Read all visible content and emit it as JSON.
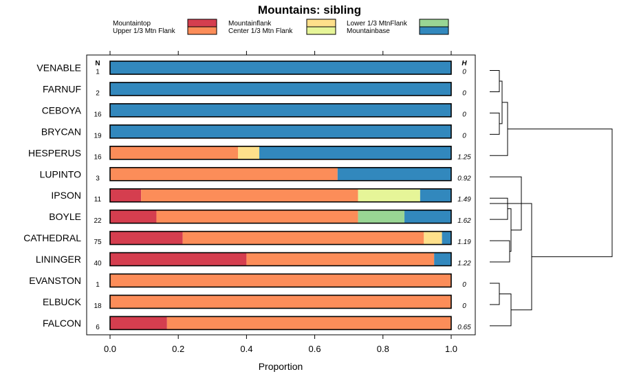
{
  "chart_data": {
    "type": "bar",
    "orientation": "horizontal",
    "stacked": true,
    "title": "Mountains: sibling",
    "xlabel": "Proportion",
    "xlim": [
      0,
      1
    ],
    "xticks": [
      "0.0",
      "0.2",
      "0.4",
      "0.6",
      "0.8",
      "1.0"
    ],
    "n_header": "N",
    "h_header": "H",
    "legend": [
      {
        "name": "Mountaintop",
        "color": "#d53e4f"
      },
      {
        "name": "Upper 1/3 Mtn Flank",
        "color": "#fc8d59"
      },
      {
        "name": "Mountainflank",
        "color": "#fee08b"
      },
      {
        "name": "Center 1/3 Mtn Flank",
        "color": "#e6f598"
      },
      {
        "name": "Lower 1/3 MtnFlank",
        "color": "#99d594"
      },
      {
        "name": "Mountainbase",
        "color": "#3288bd"
      }
    ],
    "rows": [
      {
        "label": "VENABLE",
        "n": "1",
        "h": "0",
        "segments": [
          {
            "cat": "Mountainbase",
            "value": 1.0
          }
        ]
      },
      {
        "label": "FARNUF",
        "n": "2",
        "h": "0",
        "segments": [
          {
            "cat": "Mountainbase",
            "value": 1.0
          }
        ]
      },
      {
        "label": "CEBOYA",
        "n": "16",
        "h": "0",
        "segments": [
          {
            "cat": "Mountainbase",
            "value": 1.0
          }
        ]
      },
      {
        "label": "BRYCAN",
        "n": "19",
        "h": "0",
        "segments": [
          {
            "cat": "Mountainbase",
            "value": 1.0
          }
        ]
      },
      {
        "label": "HESPERUS",
        "n": "16",
        "h": "1.25",
        "segments": [
          {
            "cat": "Upper 1/3 Mtn Flank",
            "value": 0.375
          },
          {
            "cat": "Mountainflank",
            "value": 0.0625
          },
          {
            "cat": "Mountainbase",
            "value": 0.5625
          }
        ]
      },
      {
        "label": "LUPINTO",
        "n": "3",
        "h": "0.92",
        "segments": [
          {
            "cat": "Upper 1/3 Mtn Flank",
            "value": 0.667
          },
          {
            "cat": "Mountainbase",
            "value": 0.333
          }
        ]
      },
      {
        "label": "IPSON",
        "n": "11",
        "h": "1.49",
        "segments": [
          {
            "cat": "Mountaintop",
            "value": 0.091
          },
          {
            "cat": "Upper 1/3 Mtn Flank",
            "value": 0.636
          },
          {
            "cat": "Center 1/3 Mtn Flank",
            "value": 0.182
          },
          {
            "cat": "Mountainbase",
            "value": 0.091
          }
        ]
      },
      {
        "label": "BOYLE",
        "n": "22",
        "h": "1.62",
        "segments": [
          {
            "cat": "Mountaintop",
            "value": 0.136
          },
          {
            "cat": "Upper 1/3 Mtn Flank",
            "value": 0.591
          },
          {
            "cat": "Lower 1/3 MtnFlank",
            "value": 0.136
          },
          {
            "cat": "Mountainbase",
            "value": 0.137
          }
        ]
      },
      {
        "label": "CATHEDRAL",
        "n": "75",
        "h": "1.19",
        "segments": [
          {
            "cat": "Mountaintop",
            "value": 0.213
          },
          {
            "cat": "Upper 1/3 Mtn Flank",
            "value": 0.707
          },
          {
            "cat": "Mountainflank",
            "value": 0.053
          },
          {
            "cat": "Mountainbase",
            "value": 0.027
          }
        ]
      },
      {
        "label": "LININGER",
        "n": "40",
        "h": "1.22",
        "segments": [
          {
            "cat": "Mountaintop",
            "value": 0.4
          },
          {
            "cat": "Upper 1/3 Mtn Flank",
            "value": 0.55
          },
          {
            "cat": "Mountainbase",
            "value": 0.05
          }
        ]
      },
      {
        "label": "EVANSTON",
        "n": "1",
        "h": "0",
        "segments": [
          {
            "cat": "Upper 1/3 Mtn Flank",
            "value": 1.0
          }
        ]
      },
      {
        "label": "ELBUCK",
        "n": "18",
        "h": "0",
        "segments": [
          {
            "cat": "Upper 1/3 Mtn Flank",
            "value": 1.0
          }
        ]
      },
      {
        "label": "FALCON",
        "n": "6",
        "h": "0.65",
        "segments": [
          {
            "cat": "Mountaintop",
            "value": 0.167
          },
          {
            "cat": "Upper 1/3 Mtn Flank",
            "value": 0.833
          }
        ]
      }
    ]
  }
}
